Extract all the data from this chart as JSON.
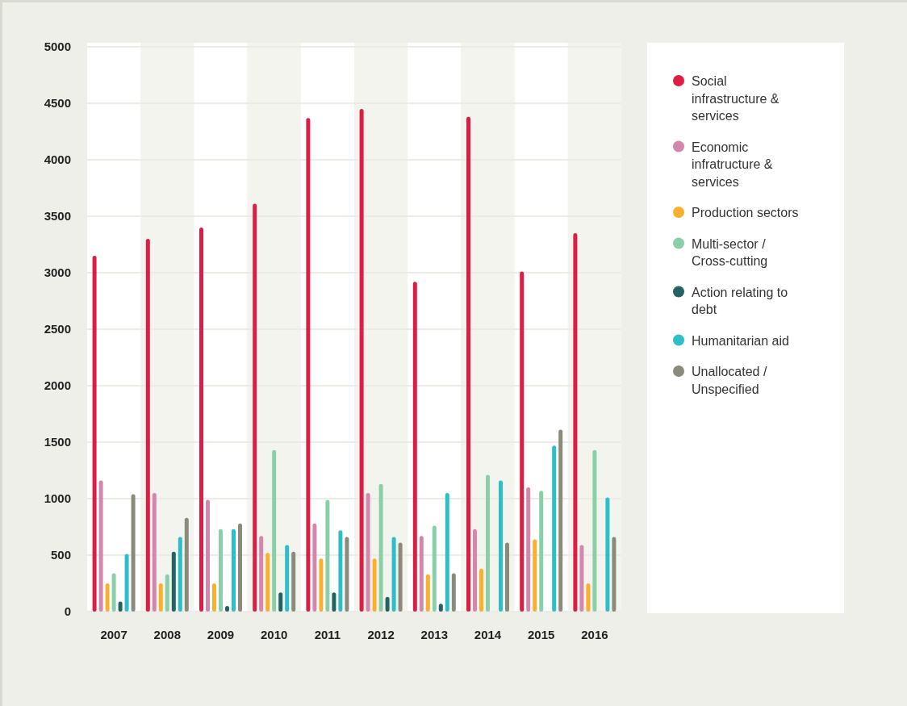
{
  "chart_data": {
    "type": "bar",
    "categories": [
      "2007",
      "2008",
      "2009",
      "2010",
      "2011",
      "2012",
      "2013",
      "2014",
      "2015",
      "2016"
    ],
    "series": [
      {
        "name": "Social infrastructure & services",
        "color": "#dc1e44",
        "values": [
          3150,
          3300,
          3400,
          3610,
          4370,
          4450,
          2920,
          4380,
          3010,
          3350
        ]
      },
      {
        "name": "Economic infratructure & services",
        "color": "#d486ad",
        "values": [
          1160,
          1050,
          990,
          670,
          780,
          1050,
          670,
          730,
          1100,
          590
        ]
      },
      {
        "name": "Production sectors",
        "color": "#fbb02d",
        "values": [
          250,
          250,
          250,
          520,
          470,
          470,
          330,
          380,
          640,
          250
        ]
      },
      {
        "name": "Multi-sector / Cross-cutting",
        "color": "#8acfa8",
        "values": [
          340,
          330,
          730,
          1430,
          990,
          1130,
          760,
          1210,
          1070,
          1430
        ]
      },
      {
        "name": "Action relating to debt",
        "color": "#246363",
        "values": [
          90,
          530,
          50,
          170,
          170,
          130,
          70,
          null,
          null,
          null
        ]
      },
      {
        "name": "Humanitarian aid",
        "color": "#2cbfca",
        "values": [
          510,
          660,
          730,
          590,
          720,
          660,
          1050,
          1160,
          1470,
          1010
        ]
      },
      {
        "name": "Unallocated / Unspecified",
        "color": "#8b8b7b",
        "values": [
          1040,
          830,
          780,
          530,
          660,
          610,
          340,
          610,
          1610,
          660
        ]
      }
    ],
    "ylim": [
      0,
      5000
    ],
    "yticks": [
      0,
      500,
      1000,
      1500,
      2000,
      2500,
      3000,
      3500,
      4000,
      4500,
      5000
    ],
    "grid": "y",
    "legend": "right"
  }
}
